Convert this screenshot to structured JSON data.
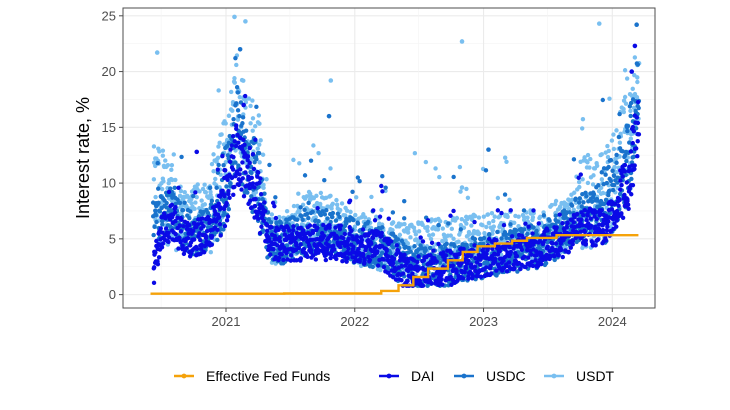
{
  "chart_data": {
    "type": "scatter",
    "title": "",
    "xlabel": "",
    "ylabel": "Interest rate, %",
    "x_ticks": [
      "2021",
      "2022",
      "2023",
      "2024"
    ],
    "y_ticks": [
      "0",
      "5",
      "10",
      "15",
      "20",
      "25"
    ],
    "xlim": [
      "2020-03-15",
      "2024-05-01"
    ],
    "ylim": [
      -1.2,
      25.7
    ],
    "grid": true,
    "legend_position": "bottom",
    "series": [
      {
        "name": "Effective Fed Funds",
        "kind": "step-line",
        "color": "#f5a20a",
        "points": [
          [
            "2020-06-01",
            0.08
          ],
          [
            "2021-06-15",
            0.1
          ],
          [
            "2022-03-17",
            0.33
          ],
          [
            "2022-05-05",
            0.83
          ],
          [
            "2022-06-16",
            1.58
          ],
          [
            "2022-07-28",
            2.33
          ],
          [
            "2022-09-22",
            3.08
          ],
          [
            "2022-11-03",
            3.83
          ],
          [
            "2022-12-15",
            4.33
          ],
          [
            "2023-02-02",
            4.58
          ],
          [
            "2023-03-23",
            4.83
          ],
          [
            "2023-05-04",
            5.08
          ],
          [
            "2023-07-27",
            5.33
          ],
          [
            "2024-03-15",
            5.33
          ]
        ]
      },
      {
        "name": "DAI",
        "kind": "points",
        "color": "#0a0ae6",
        "anchors": [
          [
            "2020-06-10",
            2.0
          ],
          [
            "2020-07-05",
            6.0
          ],
          [
            "2020-08-05",
            6.5
          ],
          [
            "2020-09-01",
            5.0
          ],
          [
            "2020-10-01",
            5.0
          ],
          [
            "2020-11-15",
            5.5
          ],
          [
            "2021-01-01",
            9.0
          ],
          [
            "2021-02-01",
            13.0
          ],
          [
            "2021-03-01",
            11.0
          ],
          [
            "2021-04-01",
            9.0
          ],
          [
            "2021-05-01",
            5.0
          ],
          [
            "2021-06-01",
            4.6
          ],
          [
            "2021-09-01",
            4.6
          ],
          [
            "2021-11-01",
            4.7
          ],
          [
            "2022-01-01",
            4.4
          ],
          [
            "2022-03-01",
            4.3
          ],
          [
            "2022-05-01",
            2.8
          ],
          [
            "2022-06-01",
            1.8
          ],
          [
            "2022-09-01",
            2.2
          ],
          [
            "2022-12-01",
            3.0
          ],
          [
            "2023-03-01",
            3.6
          ],
          [
            "2023-06-01",
            4.0
          ],
          [
            "2023-08-15",
            5.0
          ],
          [
            "2023-10-01",
            6.0
          ],
          [
            "2023-12-01",
            6.0
          ],
          [
            "2024-01-15",
            7.5
          ],
          [
            "2024-02-15",
            10.0
          ],
          [
            "2024-03-15",
            15.0
          ]
        ],
        "spread": 1.6,
        "outliers": [
          [
            "2024-03-05",
            22.3
          ],
          [
            "2024-02-25",
            20.0
          ],
          [
            "2021-02-20",
            17.0
          ],
          [
            "2020-10-10",
            12.8
          ]
        ]
      },
      {
        "name": "USDC",
        "kind": "points",
        "color": "#1a73cc",
        "anchors": [
          [
            "2020-06-10",
            6.5
          ],
          [
            "2020-07-05",
            7.0
          ],
          [
            "2020-08-05",
            8.0
          ],
          [
            "2020-09-01",
            6.0
          ],
          [
            "2020-10-01",
            5.5
          ],
          [
            "2020-11-15",
            6.0
          ],
          [
            "2021-01-01",
            10.0
          ],
          [
            "2021-02-01",
            15.0
          ],
          [
            "2021-03-01",
            12.0
          ],
          [
            "2021-04-01",
            10.0
          ],
          [
            "2021-05-01",
            5.0
          ],
          [
            "2021-06-01",
            4.6
          ],
          [
            "2021-09-01",
            5.5
          ],
          [
            "2021-11-01",
            5.5
          ],
          [
            "2022-01-01",
            4.8
          ],
          [
            "2022-03-01",
            4.4
          ],
          [
            "2022-05-01",
            3.3
          ],
          [
            "2022-06-01",
            2.3
          ],
          [
            "2022-09-01",
            2.7
          ],
          [
            "2022-12-01",
            3.2
          ],
          [
            "2023-03-01",
            3.8
          ],
          [
            "2023-06-01",
            4.3
          ],
          [
            "2023-08-15",
            5.5
          ],
          [
            "2023-10-01",
            7.0
          ],
          [
            "2023-12-01",
            8.0
          ],
          [
            "2024-01-15",
            9.0
          ],
          [
            "2024-02-15",
            12.0
          ],
          [
            "2024-03-15",
            18.0
          ]
        ],
        "spread": 2.0,
        "outliers": [
          [
            "2024-03-10",
            24.2
          ],
          [
            "2021-02-10",
            22.0
          ],
          [
            "2021-10-20",
            16.0
          ],
          [
            "2023-01-15",
            13.0
          ]
        ]
      },
      {
        "name": "USDT",
        "kind": "points",
        "color": "#79bff0",
        "anchors": [
          [
            "2020-06-10",
            9.0
          ],
          [
            "2020-07-05",
            9.0
          ],
          [
            "2020-08-05",
            8.5
          ],
          [
            "2020-09-01",
            7.0
          ],
          [
            "2020-10-01",
            8.0
          ],
          [
            "2020-11-15",
            7.5
          ],
          [
            "2021-01-01",
            12.0
          ],
          [
            "2021-02-01",
            18.0
          ],
          [
            "2021-03-01",
            15.0
          ],
          [
            "2021-04-01",
            12.0
          ],
          [
            "2021-05-01",
            5.5
          ],
          [
            "2021-06-01",
            4.8
          ],
          [
            "2021-09-01",
            7.0
          ],
          [
            "2021-11-01",
            6.5
          ],
          [
            "2022-01-01",
            5.0
          ],
          [
            "2022-03-01",
            4.6
          ],
          [
            "2022-05-01",
            4.0
          ],
          [
            "2022-06-01",
            4.0
          ],
          [
            "2022-09-01",
            4.5
          ],
          [
            "2022-12-01",
            4.8
          ],
          [
            "2023-03-01",
            5.0
          ],
          [
            "2023-06-01",
            5.2
          ],
          [
            "2023-08-15",
            6.0
          ],
          [
            "2023-10-01",
            8.0
          ],
          [
            "2023-12-01",
            9.0
          ],
          [
            "2024-01-15",
            11.0
          ],
          [
            "2024-02-15",
            15.0
          ],
          [
            "2024-03-15",
            19.0
          ]
        ],
        "spread": 2.4,
        "outliers": [
          [
            "2020-06-20",
            21.7
          ],
          [
            "2021-01-25",
            24.9
          ],
          [
            "2021-02-25",
            24.5
          ],
          [
            "2021-10-25",
            19.2
          ],
          [
            "2022-11-01",
            22.7
          ],
          [
            "2022-11-01",
            9.6
          ],
          [
            "2023-11-25",
            24.3
          ],
          [
            "2024-03-01",
            17.8
          ]
        ]
      }
    ]
  }
}
